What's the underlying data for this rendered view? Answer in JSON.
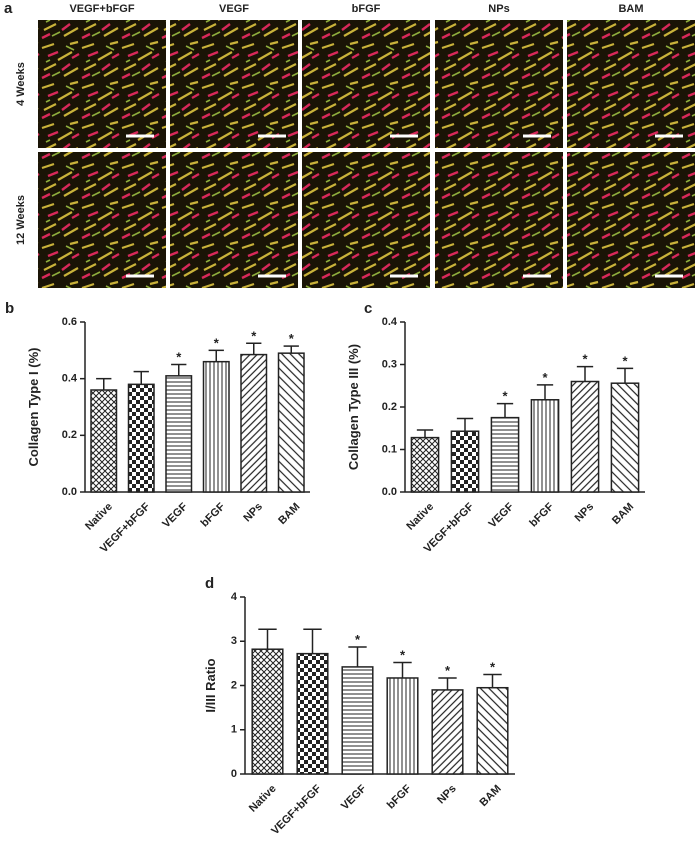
{
  "panel_a": {
    "label": "a",
    "columns": [
      "VEGF+bFGF",
      "VEGF",
      "bFGF",
      "NPs",
      "BAM"
    ],
    "rows": [
      "4 Weeks",
      "12 Weeks"
    ]
  },
  "chart_data": [
    {
      "type": "bar",
      "panel": "b",
      "y_label": "Collagen Type I (%)",
      "categories": [
        "Native",
        "VEGF+bFGF",
        "VEGF",
        "bFGF",
        "NPs",
        "BAM"
      ],
      "values": [
        0.36,
        0.38,
        0.41,
        0.46,
        0.485,
        0.49
      ],
      "errors": [
        0.04,
        0.045,
        0.04,
        0.04,
        0.04,
        0.025
      ],
      "significance": [
        null,
        null,
        "*",
        "*",
        "*",
        "*"
      ],
      "ylim": [
        0,
        0.6
      ],
      "yticks": [
        {
          "value": 0,
          "label": "0.0"
        },
        0.2,
        0.4,
        0.6
      ]
    },
    {
      "type": "bar",
      "panel": "c",
      "y_label": "Collagen Type III (%)",
      "categories": [
        "Native",
        "VEGF+bFGF",
        "VEGF",
        "bFGF",
        "NPs",
        "BAM"
      ],
      "values": [
        0.128,
        0.143,
        0.175,
        0.217,
        0.26,
        0.256
      ],
      "errors": [
        0.018,
        0.03,
        0.033,
        0.035,
        0.035,
        0.035
      ],
      "significance": [
        null,
        null,
        "*",
        "*",
        "*",
        "*"
      ],
      "ylim": [
        0,
        0.4
      ],
      "yticks": [
        {
          "value": 0,
          "label": "0.0"
        },
        0.1,
        0.2,
        0.3,
        0.4
      ]
    },
    {
      "type": "bar",
      "panel": "d",
      "y_label": "I/III Ratio",
      "categories": [
        "Native",
        "VEGF+bFGF",
        "VEGF",
        "bFGF",
        "NPs",
        "BAM"
      ],
      "values": [
        2.82,
        2.72,
        2.42,
        2.17,
        1.9,
        1.95
      ],
      "errors": [
        0.45,
        0.55,
        0.45,
        0.35,
        0.27,
        0.3
      ],
      "significance": [
        null,
        null,
        "*",
        "*",
        "*",
        "*"
      ],
      "ylim": [
        0,
        4
      ],
      "yticks": [
        0,
        1,
        2,
        3,
        4
      ]
    }
  ]
}
